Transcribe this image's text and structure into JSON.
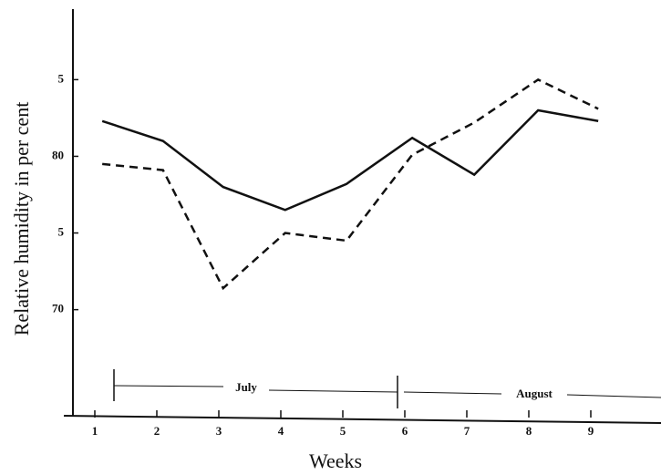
{
  "chart_data": {
    "type": "line",
    "x_label": "Weeks",
    "y_label": "Relative humidity in per cent",
    "x": [
      1.12,
      2.1,
      3.07,
      4.07,
      5.06,
      6.12,
      7.12,
      8.15,
      9.12
    ],
    "series": [
      {
        "color": "#111111",
        "dash": "solid",
        "values": [
          82.3,
          81.0,
          78.0,
          76.5,
          78.2,
          81.2,
          78.8,
          83.0,
          82.3
        ]
      },
      {
        "color": "#111111",
        "dash": "dashed",
        "values": [
          79.5,
          79.1,
          71.4,
          75.0,
          74.5,
          80.1,
          82.2,
          85.0,
          83.1
        ]
      }
    ],
    "xlim": [
      0.5,
      10.1
    ],
    "xticks": [
      1,
      2,
      3,
      4,
      5,
      6,
      7,
      8,
      9
    ],
    "ylim": [
      63.2,
      89.6
    ],
    "yticks": [
      {
        "value": 85,
        "label": "5"
      },
      80,
      {
        "value": 75,
        "label": "5"
      },
      70
    ],
    "annotations": [
      "July",
      "August"
    ]
  }
}
